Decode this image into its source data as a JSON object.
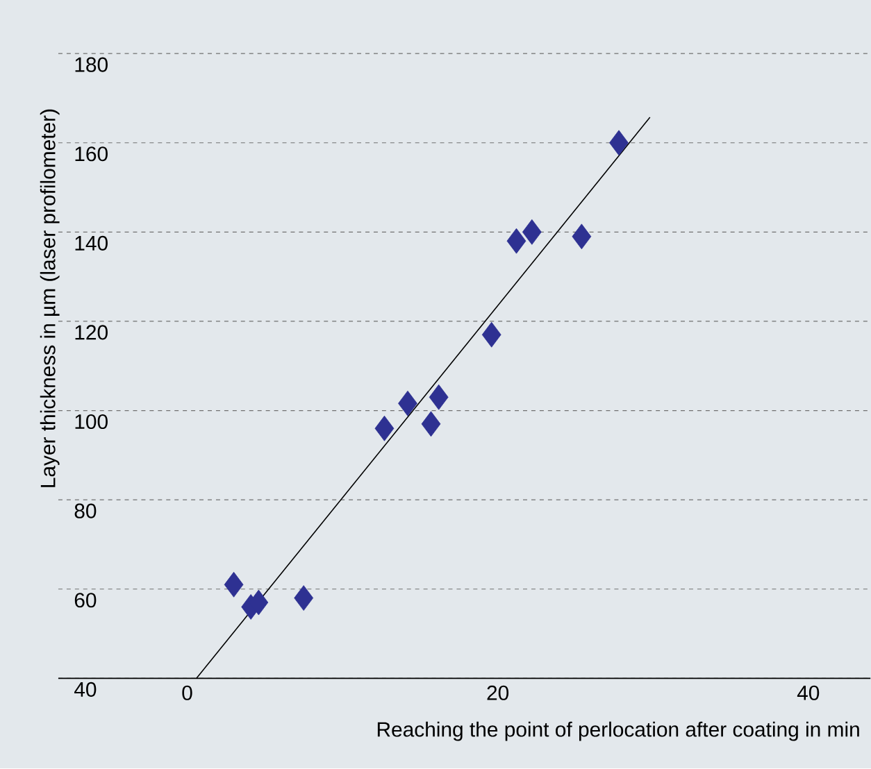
{
  "chart_data": {
    "type": "scatter",
    "xlabel": "Reaching the point of perlocation after coating in min",
    "ylabel": "Layer thickness in µm (laser profilometer)",
    "xlim": [
      -8.3,
      44
    ],
    "ylim": [
      40,
      192
    ],
    "xticks": [
      0,
      20,
      40
    ],
    "yticks": [
      40,
      60,
      80,
      100,
      120,
      140,
      160,
      180
    ],
    "grid": "y",
    "marker": "diamond",
    "series": [
      {
        "color": "#2e3192",
        "x": [
          3.0,
          4.1,
          4.6,
          7.5,
          12.7,
          14.2,
          15.7,
          16.2,
          19.6,
          21.2,
          22.2,
          25.4,
          27.8
        ],
        "values": [
          61,
          56,
          57,
          58,
          96,
          101.6,
          97,
          103,
          117,
          138,
          140,
          139,
          160
        ]
      },
      {
        "type": "line",
        "color": "#000000",
        "marker": "none",
        "x": [
          0.6,
          29.8
        ],
        "values": [
          40,
          165.7
        ]
      }
    ]
  }
}
